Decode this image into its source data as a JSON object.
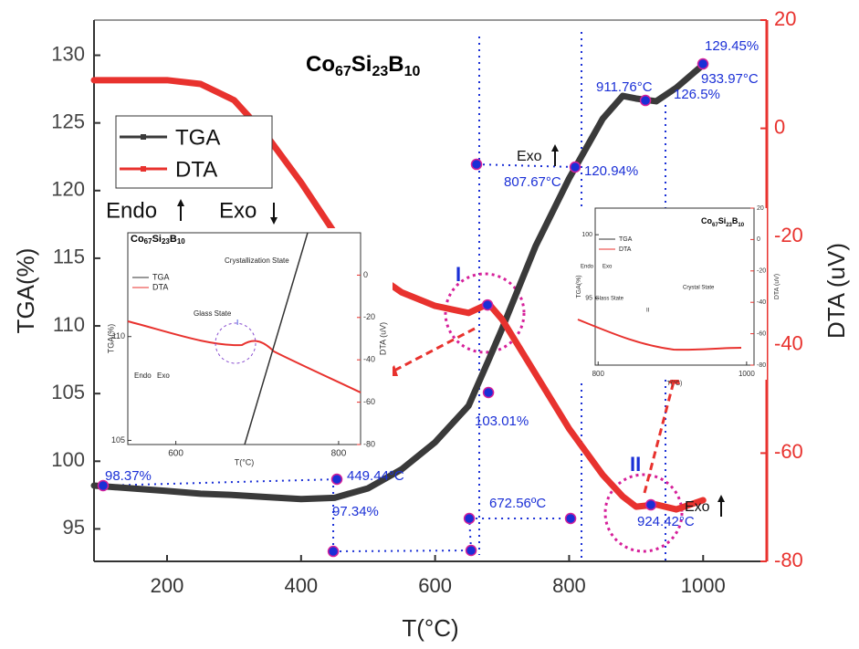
{
  "chart_data": {
    "type": "line",
    "title": [
      "Co",
      "67",
      "Si",
      "23",
      "B",
      "10"
    ],
    "xlabel": "T(°C)",
    "ylabel": "TGA(%)",
    "y2label": "DTA (uV)",
    "x": [
      91,
      200,
      250,
      300,
      350,
      400,
      450,
      500,
      550,
      600,
      650,
      680,
      700,
      750,
      800,
      850,
      880,
      900,
      930,
      960,
      1000
    ],
    "xlim": [
      91,
      1095
    ],
    "xticks": [
      200,
      400,
      600,
      800,
      1000
    ],
    "ylim": [
      92.6,
      132.6
    ],
    "yticks": [
      95,
      100,
      105,
      110,
      115,
      120,
      125,
      130
    ],
    "y2lim": [
      -80,
      20
    ],
    "y2ticks": [
      20,
      0,
      -20,
      -40,
      -60,
      -80
    ],
    "legend": "upper left",
    "series": [
      {
        "name": "TGA",
        "color": "#3a3a3a",
        "values": [
          98.2,
          97.8,
          97.6,
          97.5,
          97.35,
          97.2,
          97.3,
          98.0,
          99.4,
          101.4,
          104.1,
          107.5,
          109.8,
          115.9,
          120.9,
          125.3,
          127.0,
          126.8,
          126.6,
          127.6,
          129.3
        ]
      },
      {
        "name": "DTA",
        "color": "#e8322e",
        "axis": "y2",
        "values": [
          8.9,
          8.9,
          8.2,
          5.2,
          -1.6,
          -10,
          -19.3,
          -26,
          -30.3,
          -32.8,
          -34.1,
          -32.4,
          -35.3,
          -45.4,
          -55.5,
          -64,
          -68,
          -69.9,
          -69.5,
          -70.4,
          -68.7
        ]
      }
    ],
    "markers": {
      "color": "#1a2fd6",
      "x": [
        104.6,
        453.4,
        448,
        653.7,
        651,
        802.2,
        661.8,
        809,
        678.2,
        679.6,
        913.9,
        999.7,
        922
      ],
      "y": [
        98.2,
        98.67,
        93.34,
        93.41,
        95.77,
        95.77,
        121.94,
        121.74,
        111.55,
        105.08,
        126.66,
        129.36,
        96.78
      ]
    },
    "annotations": [
      "98.37%",
      "449.44°C",
      "97.34%",
      "672.56ºC",
      "103.01%",
      "807.67°C",
      "120.94%",
      "911.76°C",
      "126.5%",
      "129.45%",
      "933.97°C",
      "924.42°C",
      "Exo",
      "Exo",
      "I",
      "II",
      "Endo",
      "Exo"
    ],
    "insets": [
      {
        "title": [
          "Co",
          "67",
          "Si",
          "23",
          "B",
          "10"
        ],
        "legend": [
          "TGA",
          "DTA"
        ],
        "xlabel": "T(°C)",
        "ylabel": "TGA(%)",
        "y2label": "DTA (uV)",
        "xlim": [
          541,
          827
        ],
        "xticks": [
          600,
          800
        ],
        "ylim": [
          104.8,
          115
        ],
        "yticks": [
          105,
          110
        ],
        "y2lim": [
          -80,
          20
        ],
        "y2ticks": [
          0,
          -20,
          -40,
          -60,
          -80
        ],
        "notes": [
          "Endo",
          "Exo",
          "Glass State",
          "Crystallization State",
          "I"
        ]
      },
      {
        "title": [
          "Co",
          "67",
          "Si",
          "23",
          "B",
          "10"
        ],
        "legend": [
          "TGA",
          "DTA"
        ],
        "xlabel": "T(°C)",
        "ylabel": "TGA(%)",
        "y2label": "DTA (uV)",
        "xlim": [
          796,
          1010
        ],
        "xticks": [
          800,
          1000
        ],
        "ylim": [
          89.7,
          102.1
        ],
        "yticks": [
          95,
          100
        ],
        "y2lim": [
          -80,
          20
        ],
        "y2ticks": [
          20,
          0,
          -20,
          -40,
          -60,
          -80
        ],
        "notes": [
          "Endo",
          "Exo",
          "Glass State",
          "II",
          "Crystal State"
        ]
      }
    ]
  }
}
